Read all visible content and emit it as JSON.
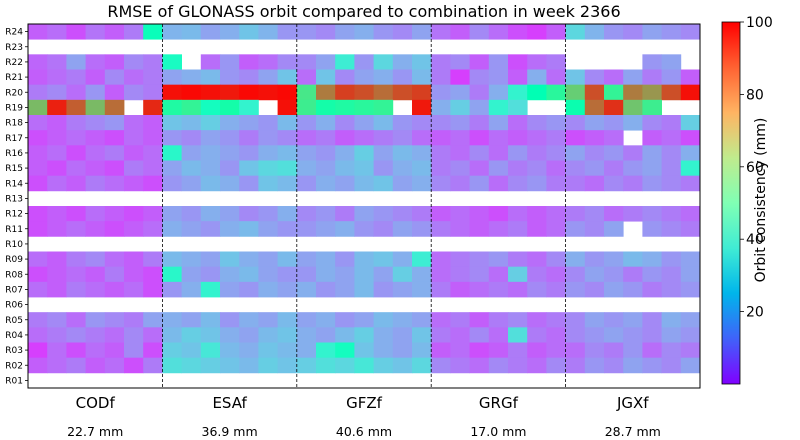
{
  "chart_data": {
    "type": "heatmap",
    "title": "RMSE of GLONASS orbit compared to combination in week 2366",
    "xlabel": "",
    "ylabel": "",
    "satellites": [
      "R24",
      "R23",
      "R22",
      "R21",
      "R20",
      "R19",
      "R18",
      "R17",
      "R16",
      "R15",
      "R14",
      "R13",
      "R12",
      "R11",
      "R10",
      "R09",
      "R08",
      "R07",
      "R06",
      "R05",
      "R04",
      "R03",
      "R02",
      "R01"
    ],
    "analysis_centers": [
      "CODf",
      "ESAf",
      "GFZf",
      "GRGf",
      "JGXf"
    ],
    "days_per_center": 7,
    "mean_rmse": [
      "22.7 mm",
      "36.9 mm",
      "40.6 mm",
      "17.0 mm",
      "28.7 mm"
    ],
    "colorbar": {
      "label": "Orbit consistency (mm)",
      "range": [
        0,
        100
      ],
      "ticks": [
        20,
        40,
        60,
        80,
        100
      ],
      "colormap": "rainbow"
    },
    "missing_rows": [
      "R23",
      "R13",
      "R10",
      "R06",
      "R01"
    ],
    "rows": {
      "R24": [
        [
          12,
          14,
          10,
          15,
          12,
          16,
          48
        ],
        [
          25,
          26,
          22,
          24,
          28,
          25,
          20
        ],
        [
          20,
          18,
          22,
          24,
          20,
          18,
          22
        ],
        [
          15,
          12,
          18,
          14,
          10,
          8,
          12
        ],
        [
          32,
          25,
          20,
          18,
          22,
          20,
          18
        ]
      ],
      "R22": [
        [
          13,
          15,
          22,
          14,
          12,
          18,
          16
        ],
        [
          45,
          null,
          14,
          20,
          12,
          14,
          18
        ],
        [
          18,
          22,
          38,
          20,
          32,
          24,
          28
        ],
        [
          16,
          18,
          12,
          20,
          10,
          14,
          16
        ],
        [
          null,
          null,
          null,
          null,
          20,
          22,
          null
        ]
      ],
      "R21": [
        [
          12,
          14,
          16,
          12,
          18,
          14,
          16
        ],
        [
          22,
          24,
          26,
          20,
          18,
          22,
          28
        ],
        [
          14,
          28,
          18,
          22,
          24,
          20,
          26
        ],
        [
          16,
          8,
          18,
          20,
          12,
          24,
          14
        ],
        [
          28,
          18,
          14,
          22,
          16,
          20,
          12
        ]
      ],
      "R20": [
        [
          16,
          18,
          14,
          20,
          12,
          18,
          16
        ],
        [
          98,
          99,
          98,
          97,
          99,
          98,
          99
        ],
        [
          64,
          84,
          92,
          90,
          86,
          90,
          92
        ],
        [
          20,
          22,
          16,
          24,
          40,
          50,
          58
        ],
        [
          70,
          90,
          60,
          84,
          80,
          90,
          98
        ]
      ],
      "R19": [
        [
          74,
          96,
          88,
          74,
          86,
          null,
          95
        ],
        [
          56,
          60,
          46,
          54,
          40,
          null,
          98
        ],
        [
          62,
          54,
          56,
          58,
          60,
          null,
          97
        ],
        [
          24,
          30,
          22,
          40,
          34,
          null,
          null
        ],
        [
          52,
          86,
          94,
          72,
          62,
          null,
          null
        ]
      ],
      "R18": [
        [
          14,
          12,
          16,
          18,
          20,
          14,
          12
        ],
        [
          28,
          26,
          30,
          24,
          22,
          20,
          26
        ],
        [
          20,
          24,
          18,
          22,
          26,
          20,
          18
        ],
        [
          18,
          20,
          16,
          22,
          14,
          18,
          20
        ],
        [
          18,
          22,
          20,
          24,
          18,
          16,
          30
        ]
      ],
      "R17": [
        [
          10,
          12,
          14,
          12,
          10,
          14,
          12
        ],
        [
          20,
          18,
          22,
          20,
          16,
          20,
          18
        ],
        [
          14,
          16,
          12,
          14,
          16,
          18,
          14
        ],
        [
          12,
          14,
          10,
          14,
          12,
          14,
          16
        ],
        [
          10,
          12,
          14,
          null,
          12,
          14,
          10
        ]
      ],
      "R16": [
        [
          12,
          14,
          10,
          14,
          16,
          12,
          14
        ],
        [
          42,
          22,
          24,
          22,
          20,
          24,
          26
        ],
        [
          22,
          20,
          24,
          30,
          22,
          26,
          24
        ],
        [
          16,
          14,
          18,
          14,
          20,
          16,
          18
        ],
        [
          22,
          18,
          20,
          16,
          22,
          18,
          24
        ]
      ],
      "R15": [
        [
          12,
          10,
          14,
          12,
          10,
          16,
          14
        ],
        [
          22,
          26,
          24,
          20,
          28,
          32,
          34
        ],
        [
          24,
          22,
          26,
          28,
          20,
          24,
          26
        ],
        [
          16,
          18,
          14,
          20,
          16,
          18,
          14
        ],
        [
          18,
          20,
          16,
          20,
          22,
          18,
          40
        ]
      ],
      "R14": [
        [
          10,
          14,
          12,
          16,
          14,
          12,
          10
        ],
        [
          20,
          22,
          26,
          24,
          20,
          28,
          26
        ],
        [
          20,
          24,
          22,
          26,
          28,
          22,
          24
        ],
        [
          18,
          16,
          20,
          14,
          18,
          20,
          16
        ],
        [
          16,
          14,
          18,
          16,
          20,
          18,
          16
        ]
      ],
      "R12": [
        [
          10,
          12,
          10,
          14,
          12,
          10,
          12
        ],
        [
          22,
          20,
          24,
          22,
          18,
          20,
          24
        ],
        [
          18,
          20,
          16,
          22,
          20,
          18,
          16
        ],
        [
          12,
          14,
          12,
          10,
          14,
          12,
          14
        ],
        [
          16,
          18,
          14,
          16,
          18,
          16,
          14
        ]
      ],
      "R11": [
        [
          10,
          12,
          14,
          12,
          10,
          12,
          14
        ],
        [
          24,
          22,
          20,
          24,
          26,
          22,
          20
        ],
        [
          20,
          22,
          24,
          20,
          18,
          22,
          20
        ],
        [
          16,
          14,
          12,
          14,
          16,
          12,
          14
        ],
        [
          20,
          18,
          22,
          null,
          20,
          18,
          16
        ]
      ],
      "R09": [
        [
          14,
          12,
          16,
          18,
          14,
          12,
          16
        ],
        [
          26,
          24,
          22,
          28,
          24,
          22,
          26
        ],
        [
          22,
          24,
          20,
          26,
          28,
          24,
          38
        ],
        [
          14,
          16,
          18,
          20,
          16,
          14,
          18
        ],
        [
          24,
          20,
          22,
          26,
          24,
          20,
          22
        ]
      ],
      "R08": [
        [
          10,
          12,
          14,
          12,
          16,
          12,
          10
        ],
        [
          42,
          22,
          20,
          24,
          26,
          22,
          20
        ],
        [
          20,
          24,
          22,
          26,
          22,
          30,
          24
        ],
        [
          14,
          16,
          18,
          14,
          30,
          16,
          14
        ],
        [
          18,
          22,
          20,
          16,
          20,
          18,
          22
        ]
      ],
      "R07": [
        [
          14,
          12,
          16,
          14,
          12,
          14,
          10
        ],
        [
          20,
          24,
          40,
          22,
          20,
          24,
          22
        ],
        [
          24,
          20,
          22,
          26,
          20,
          22,
          24
        ],
        [
          16,
          12,
          14,
          16,
          14,
          18,
          16
        ],
        [
          20,
          18,
          22,
          20,
          16,
          18,
          20
        ]
      ],
      "R05": [
        [
          16,
          18,
          14,
          20,
          18,
          16,
          22
        ],
        [
          24,
          22,
          26,
          20,
          24,
          22,
          26
        ],
        [
          22,
          24,
          20,
          22,
          26,
          24,
          22
        ],
        [
          14,
          16,
          12,
          16,
          18,
          14,
          16
        ],
        [
          18,
          22,
          20,
          22,
          18,
          24,
          22
        ]
      ],
      "R04": [
        [
          14,
          16,
          18,
          16,
          14,
          18,
          14
        ],
        [
          26,
          30,
          28,
          24,
          22,
          26,
          28
        ],
        [
          24,
          22,
          26,
          30,
          24,
          22,
          28
        ],
        [
          16,
          14,
          18,
          14,
          34,
          16,
          14
        ],
        [
          18,
          20,
          22,
          20,
          18,
          22,
          20
        ]
      ],
      "R03": [
        [
          8,
          14,
          10,
          14,
          12,
          18,
          10
        ],
        [
          30,
          28,
          36,
          26,
          24,
          28,
          26
        ],
        [
          24,
          40,
          46,
          28,
          24,
          22,
          26
        ],
        [
          12,
          14,
          10,
          12,
          16,
          12,
          14
        ],
        [
          14,
          18,
          16,
          20,
          14,
          18,
          16
        ]
      ],
      "R02": [
        [
          12,
          14,
          16,
          12,
          14,
          10,
          16
        ],
        [
          34,
          32,
          30,
          28,
          26,
          30,
          28
        ],
        [
          30,
          34,
          32,
          36,
          30,
          28,
          32
        ],
        [
          18,
          16,
          14,
          18,
          16,
          14,
          18
        ],
        [
          16,
          20,
          18,
          22,
          20,
          18,
          22
        ]
      ]
    }
  }
}
